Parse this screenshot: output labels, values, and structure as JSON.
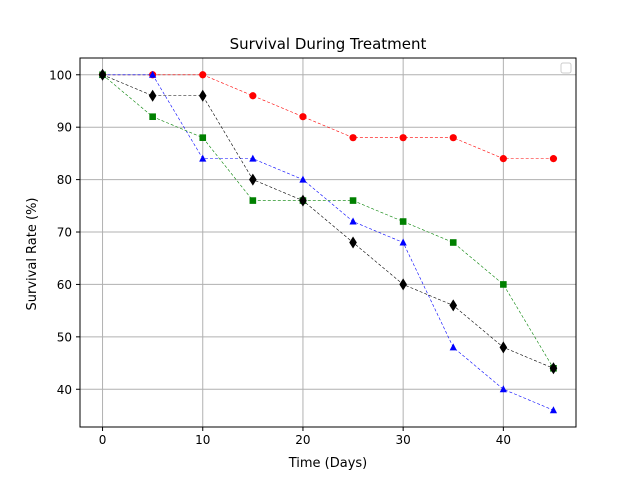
{
  "chart_data": {
    "type": "line",
    "title": "Survival During Treatment",
    "xlabel": "Time (Days)",
    "ylabel": "Survival Rate (%)",
    "x": [
      0,
      5,
      10,
      15,
      20,
      25,
      30,
      35,
      40,
      45
    ],
    "xlim": [
      -2.25,
      47.25
    ],
    "ylim": [
      32.8,
      103.2
    ],
    "xticks": [
      "0",
      "10",
      "20",
      "30",
      "40"
    ],
    "yticks": [
      "40",
      "50",
      "60",
      "70",
      "80",
      "90",
      "100"
    ],
    "grid": true,
    "legend": "top-right (empty)",
    "series": [
      {
        "color": "#ff0000",
        "marker": "circle",
        "values": [
          100,
          100,
          100,
          96,
          92,
          88,
          88,
          88,
          84,
          84
        ]
      },
      {
        "color": "#0000ff",
        "marker": "triangle",
        "values": [
          100,
          100,
          84,
          84,
          80,
          72,
          68,
          48,
          40,
          36
        ]
      },
      {
        "color": "#008000",
        "marker": "square",
        "values": [
          100,
          92,
          88,
          76,
          76,
          76,
          72,
          68,
          60,
          44
        ]
      },
      {
        "color": "#000000",
        "marker": "thin-diamond",
        "values": [
          100,
          96,
          96,
          80,
          76,
          68,
          60,
          56,
          48,
          44
        ]
      }
    ]
  }
}
